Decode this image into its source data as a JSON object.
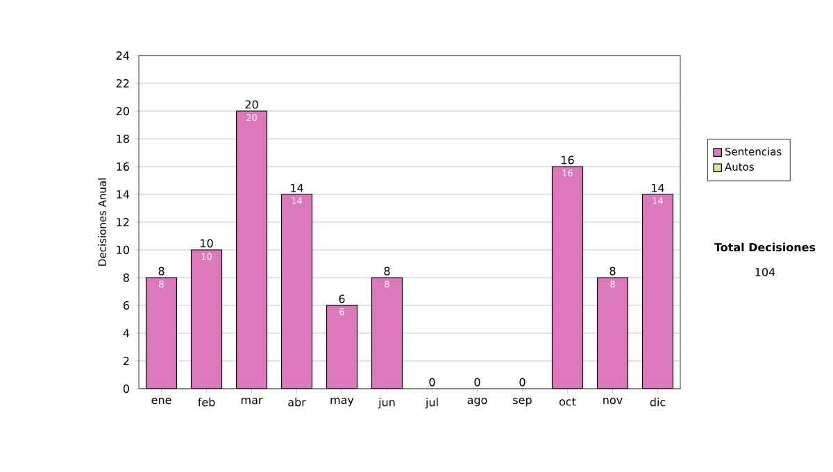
{
  "chart_data": {
    "type": "bar",
    "stacked": true,
    "ylabel": "Decisiones Anual",
    "categories": [
      "ene",
      "feb",
      "mar",
      "abr",
      "may",
      "jun",
      "jul",
      "ago",
      "sep",
      "oct",
      "nov",
      "dic"
    ],
    "series": [
      {
        "name": "Sentencias",
        "color": "#dc78bc",
        "values": [
          8,
          10,
          20,
          14,
          6,
          8,
          0,
          0,
          0,
          16,
          8,
          14
        ],
        "value_labels": [
          "8",
          "10",
          "20",
          "14",
          "6",
          "8",
          null,
          null,
          null,
          "16",
          "8",
          "14"
        ]
      },
      {
        "name": "Autos",
        "color": "#d4e8a0",
        "values": [
          0,
          0,
          0,
          0,
          0,
          0,
          0,
          0,
          0,
          0,
          0,
          0
        ]
      }
    ],
    "totals": [
      "8",
      "10",
      "20",
      "14",
      "6",
      "8",
      "0",
      "0",
      "0",
      "16",
      "8",
      "14"
    ],
    "ylim": [
      0,
      24
    ],
    "yticks": [
      0,
      2,
      4,
      6,
      8,
      10,
      12,
      14,
      16,
      18,
      20,
      22,
      24
    ],
    "grid": "y",
    "legend": "right",
    "annotations": [
      "**Total Decisiones**",
      "104"
    ]
  }
}
